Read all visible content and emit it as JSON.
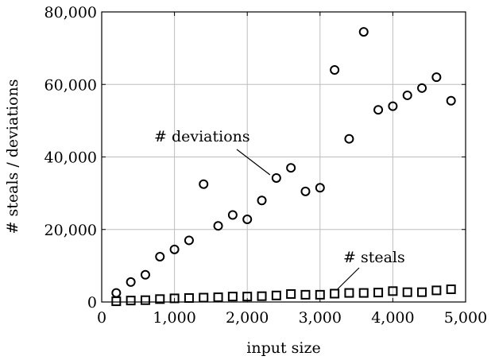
{
  "chart_data": {
    "type": "scatter",
    "xlabel": "input size",
    "ylabel": "# steals / deviations",
    "xlim": [
      0,
      5000
    ],
    "ylim": [
      0,
      80000
    ],
    "grid": true,
    "xticks": [
      0,
      1000,
      2000,
      3000,
      4000,
      5000
    ],
    "xtick_labels": [
      "0",
      "1,000",
      "2,000",
      "3,000",
      "4,000",
      "5,000"
    ],
    "yticks": [
      0,
      20000,
      40000,
      60000,
      80000
    ],
    "ytick_labels": [
      "0",
      "20,000",
      "40,000",
      "60,000",
      "80,000"
    ],
    "series": [
      {
        "marker": "circle",
        "x": [
          200,
          400,
          600,
          800,
          1000,
          1200,
          1400,
          1600,
          1800,
          2000,
          2200,
          2400,
          2600,
          2800,
          3000,
          3200,
          3400,
          3600,
          3800,
          4000,
          4200,
          4400,
          4600,
          4800
        ],
        "y": [
          2500,
          5500,
          7500,
          12500,
          14500,
          17000,
          32500,
          21000,
          24000,
          22800,
          28000,
          34200,
          37000,
          30500,
          31500,
          64000,
          45000,
          74500,
          53000,
          54000,
          57000,
          59000,
          62000,
          55500
        ]
      },
      {
        "marker": "square",
        "x": [
          200,
          400,
          600,
          800,
          1000,
          1200,
          1400,
          1600,
          1800,
          2000,
          2200,
          2400,
          2600,
          2800,
          3000,
          3200,
          3400,
          3600,
          3800,
          4000,
          4200,
          4400,
          4600,
          4800
        ],
        "y": [
          200,
          400,
          500,
          800,
          1000,
          1100,
          1200,
          1300,
          1500,
          1500,
          1600,
          1800,
          2200,
          2000,
          2000,
          2300,
          2500,
          2500,
          2600,
          3000,
          2700,
          2700,
          3200,
          3500
        ]
      }
    ],
    "annotations": [
      {
        "text": "# deviations",
        "target_x": 2400,
        "target_y": 34200
      },
      {
        "text": "# steals",
        "target_x": 3200,
        "target_y": 2300
      }
    ]
  }
}
